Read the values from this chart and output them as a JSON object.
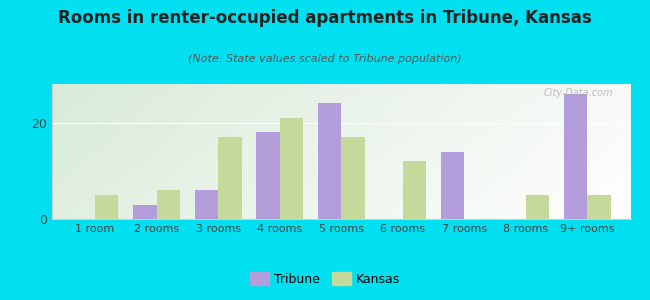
{
  "title": "Rooms in renter-occupied apartments in Tribune, Kansas",
  "subtitle": "(Note: State values scaled to Tribune population)",
  "categories": [
    "1 room",
    "2 rooms",
    "3 rooms",
    "4 rooms",
    "5 rooms",
    "6 rooms",
    "7 rooms",
    "8 rooms",
    "9+ rooms"
  ],
  "tribune_values": [
    0,
    3,
    6,
    18,
    24,
    0,
    14,
    0,
    26
  ],
  "kansas_values": [
    5,
    6,
    17,
    21,
    17,
    12,
    0,
    5,
    5
  ],
  "tribune_color": "#b39ddb",
  "kansas_color": "#c5d99a",
  "bg_outer": "#00e0f0",
  "ylim": [
    0,
    28
  ],
  "yticks": [
    0,
    20
  ],
  "bar_width": 0.38,
  "watermark": "City-Data.com",
  "legend_tribune": "Tribune",
  "legend_kansas": "Kansas"
}
